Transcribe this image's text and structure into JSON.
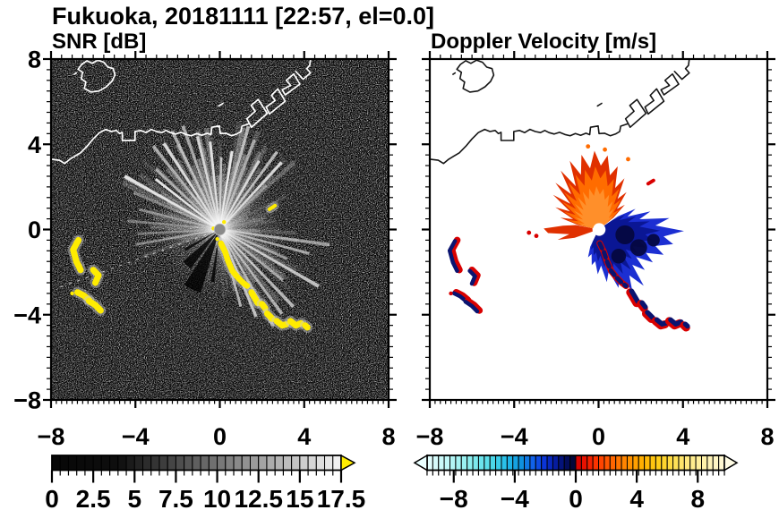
{
  "figure": {
    "title": "Fukuoka, 20181111 [22:57, el=0.0]"
  },
  "chart_data": [
    {
      "type": "heatmap",
      "title": "SNR [dB]",
      "xlabel": "",
      "ylabel": "",
      "xlim": [
        -8,
        8
      ],
      "ylim": [
        -8,
        8
      ],
      "xticks": [
        -8,
        -4,
        0,
        4,
        8
      ],
      "xtick_labels": [
        "−8",
        "−4",
        "0",
        "4",
        "8"
      ],
      "yticks": [
        8,
        4,
        0,
        -4,
        -8
      ],
      "ytick_labels": [
        "8",
        "4",
        "0",
        "−4",
        "−8"
      ],
      "minor_step_x": 0.25,
      "minor_step_y": 0.5,
      "grid": false,
      "background_color": "#000000",
      "coast_color": "#ffffff",
      "echo_color": "#ffec00",
      "echo_halo_color": "#cccccc",
      "radar_center": [
        0,
        0
      ],
      "colorbar": {
        "kind": "grayscale",
        "min": 0,
        "max": 17.5,
        "cell_step": 0.5,
        "ticks": [
          0,
          2.5,
          5,
          7.5,
          10,
          12.5,
          15,
          17.5
        ],
        "tick_labels": [
          "0",
          "2.5",
          "5",
          "7.5",
          "10",
          "12.5",
          "15",
          "17.5"
        ],
        "over_arrow_color": "#ffec00"
      }
    },
    {
      "type": "heatmap",
      "title": "Doppler Velocity [m/s]",
      "xlabel": "",
      "ylabel": "",
      "xlim": [
        -8,
        8
      ],
      "ylim": [
        -8,
        8
      ],
      "xticks": [
        -8,
        -4,
        0,
        4,
        8
      ],
      "xtick_labels": [
        "−8",
        "−4",
        "0",
        "4",
        "8"
      ],
      "yticks": [
        8,
        4,
        0,
        -4,
        -8
      ],
      "ytick_labels": [
        "8",
        "4",
        "0",
        "−4",
        "−8"
      ],
      "minor_step_x": 0.25,
      "minor_step_y": 0.5,
      "grid": false,
      "background_color": "#ffffff",
      "coast_color": "#151515",
      "pos_color_main": "#ff6c00",
      "pos_color_edge": "#e03000",
      "pos_color_core": "#ff8f2a",
      "neg_color_main": "#1c2fd2",
      "neg_color_dark": "#0a1694",
      "neg_color_darkest": "#04073c",
      "red_color": "#d90000",
      "navy_color": "#0a1470",
      "colorbar": {
        "kind": "doppler",
        "min": -9.75,
        "max": 9.75,
        "cell_step": 0.375,
        "ticks": [
          -8,
          -4,
          0,
          4,
          8
        ],
        "tick_labels": [
          "−8",
          "−4",
          "0",
          "4",
          "8"
        ],
        "under_arrow_color": "#e9ffff",
        "over_arrow_color": "#fffce4",
        "neg_stops": [
          [
            -9.75,
            "#e6ffff"
          ],
          [
            -8.5,
            "#c2f7f7"
          ],
          [
            -7.0,
            "#8fefef"
          ],
          [
            -5.5,
            "#4fd9e9"
          ],
          [
            -4.5,
            "#22bce9"
          ],
          [
            -3.6,
            "#0f93dd"
          ],
          [
            -2.8,
            "#1161ea"
          ],
          [
            -2.1,
            "#0b36da"
          ],
          [
            -1.5,
            "#0721b0"
          ],
          [
            -0.9,
            "#041277"
          ],
          [
            -0.3,
            "#020843"
          ],
          [
            -0.05,
            "#01052e"
          ]
        ],
        "pos_stops": [
          [
            0.05,
            "#cf0000"
          ],
          [
            0.7,
            "#ee1500"
          ],
          [
            1.5,
            "#ff3c00"
          ],
          [
            2.4,
            "#ff6400"
          ],
          [
            3.4,
            "#ff8c00"
          ],
          [
            4.4,
            "#ffb100"
          ],
          [
            5.4,
            "#ffcd18"
          ],
          [
            6.4,
            "#ffdf4d"
          ],
          [
            7.4,
            "#ffea83"
          ],
          [
            8.6,
            "#fff3b0"
          ],
          [
            9.75,
            "#fff9d8"
          ]
        ]
      }
    }
  ],
  "coastline": {
    "mainland": [
      [
        -8,
        3.3
      ],
      [
        -7.6,
        3.25
      ],
      [
        -7.35,
        3.1
      ],
      [
        -7.1,
        3.3
      ],
      [
        -6.85,
        3.45
      ],
      [
        -6.6,
        3.6
      ],
      [
        -6.3,
        3.9
      ],
      [
        -6.0,
        4.25
      ],
      [
        -5.7,
        4.55
      ],
      [
        -5.4,
        4.7
      ],
      [
        -5.15,
        4.6
      ],
      [
        -4.9,
        4.65
      ],
      [
        -4.75,
        4.5
      ],
      [
        -4.62,
        4.56
      ],
      [
        -4.62,
        4.18
      ],
      [
        -4.02,
        4.18
      ],
      [
        -4.02,
        4.6
      ],
      [
        -3.75,
        4.65
      ],
      [
        -3.5,
        4.55
      ],
      [
        -3.25,
        4.7
      ],
      [
        -3.0,
        4.6
      ],
      [
        -2.75,
        4.55
      ],
      [
        -2.55,
        4.65
      ],
      [
        -2.35,
        4.55
      ],
      [
        -2.1,
        4.48
      ],
      [
        -1.85,
        4.56
      ],
      [
        -1.6,
        4.46
      ],
      [
        -1.35,
        4.4
      ],
      [
        -1.1,
        4.5
      ],
      [
        -0.85,
        4.42
      ],
      [
        -0.6,
        4.52
      ],
      [
        -0.42,
        4.45
      ],
      [
        -0.38,
        4.8
      ],
      [
        -0.02,
        4.86
      ],
      [
        0.02,
        4.5
      ],
      [
        0.28,
        4.52
      ],
      [
        0.55,
        4.4
      ],
      [
        0.8,
        4.48
      ],
      [
        1.0,
        4.6
      ],
      [
        1.05,
        4.85
      ],
      [
        1.35,
        4.95
      ]
    ],
    "island": [
      [
        -6.55,
        7.75
      ],
      [
        -6.3,
        7.92
      ],
      [
        -6.05,
        7.8
      ],
      [
        -5.78,
        7.95
      ],
      [
        -5.5,
        7.85
      ],
      [
        -5.3,
        7.62
      ],
      [
        -5.05,
        7.55
      ],
      [
        -4.97,
        7.25
      ],
      [
        -5.12,
        6.95
      ],
      [
        -5.38,
        6.7
      ],
      [
        -5.72,
        6.5
      ],
      [
        -6.1,
        6.45
      ],
      [
        -6.42,
        6.62
      ],
      [
        -6.35,
        6.92
      ],
      [
        -6.57,
        7.08
      ],
      [
        -6.5,
        7.38
      ],
      [
        -6.72,
        7.52
      ]
    ],
    "port_islets": [
      [
        [
          1.5,
          4.8
        ],
        [
          2.25,
          5.45
        ],
        [
          1.82,
          6.1
        ],
        [
          1.48,
          5.82
        ],
        [
          1.68,
          5.55
        ],
        [
          1.28,
          5.2
        ]
      ],
      [
        [
          2.35,
          5.42
        ],
        [
          3.1,
          6.02
        ],
        [
          2.75,
          6.6
        ],
        [
          2.45,
          6.3
        ],
        [
          2.62,
          6.05
        ],
        [
          2.2,
          5.75
        ]
      ],
      [
        [
          3.1,
          6.32
        ],
        [
          3.8,
          6.82
        ],
        [
          3.5,
          7.3
        ],
        [
          3.15,
          7.0
        ],
        [
          3.36,
          6.76
        ],
        [
          2.96,
          6.56
        ]
      ]
    ],
    "port_top_line": [
      [
        3.6,
        7.42
      ],
      [
        3.95,
        7.05
      ],
      [
        4.3,
        7.35
      ],
      [
        4.12,
        7.55
      ],
      [
        4.26,
        7.7
      ],
      [
        4.3,
        8.0
      ]
    ],
    "tiny_marks": [
      [
        [
          -0.05,
          5.8
        ],
        [
          0.15,
          5.92
        ]
      ],
      [
        [
          -6.9,
          7.28
        ],
        [
          -6.8,
          7.35
        ]
      ]
    ]
  },
  "echoes": {
    "left_cluster": [
      [
        [
          -6.7,
          -0.5
        ],
        [
          -6.95,
          -0.95
        ],
        [
          -6.8,
          -1.5
        ],
        [
          -6.6,
          -1.9
        ]
      ],
      [
        [
          -6.0,
          -1.9
        ],
        [
          -5.75,
          -2.15
        ],
        [
          -5.9,
          -2.5
        ]
      ],
      [
        [
          -6.75,
          -2.95
        ],
        [
          -6.45,
          -3.1
        ],
        [
          -6.2,
          -3.3
        ]
      ],
      [
        [
          -6.2,
          -3.35
        ],
        [
          -5.9,
          -3.55
        ],
        [
          -5.65,
          -3.8
        ]
      ]
    ],
    "cluster_dot": [
      -7.0,
      -3.0
    ],
    "chain_inner": [
      [
        0.05,
        -0.65
      ],
      [
        0.25,
        -1.05
      ],
      [
        0.4,
        -1.5
      ],
      [
        0.6,
        -1.95
      ],
      [
        0.85,
        -2.25
      ],
      [
        1.1,
        -2.5
      ],
      [
        1.3,
        -2.65
      ]
    ],
    "chain": [
      [
        [
          1.5,
          -2.95
        ],
        [
          1.65,
          -3.2
        ],
        [
          1.8,
          -3.45
        ]
      ],
      [
        [
          2.0,
          -3.5
        ],
        [
          2.15,
          -3.7
        ]
      ],
      [
        [
          2.25,
          -3.95
        ],
        [
          2.5,
          -4.2
        ]
      ],
      [
        [
          2.7,
          -4.3
        ],
        [
          2.95,
          -4.5
        ],
        [
          3.15,
          -4.45
        ]
      ],
      [
        [
          3.35,
          -4.3
        ],
        [
          3.6,
          -4.5
        ],
        [
          3.85,
          -4.4
        ]
      ],
      [
        [
          4.05,
          -4.5
        ],
        [
          4.15,
          -4.6
        ]
      ]
    ],
    "snr_dash": [
      [
        2.35,
        0.95
      ],
      [
        2.62,
        1.12
      ]
    ],
    "snr_dots": [
      [
        -0.3,
        0.05
      ],
      [
        -0.12,
        -0.45
      ],
      [
        0.2,
        0.35
      ]
    ],
    "vel_dash": [
      [
        2.35,
        2.15
      ],
      [
        2.6,
        2.3
      ]
    ],
    "vel_red_dots": [
      [
        -2.95,
        -0.3
      ],
      [
        -3.3,
        -0.15
      ]
    ],
    "vel_orange_dots": [
      [
        0.3,
        3.75
      ],
      [
        -0.5,
        3.9
      ],
      [
        1.4,
        3.3
      ]
    ]
  },
  "snr_field": {
    "spokes": [
      299,
      306,
      313,
      320,
      326,
      333,
      339,
      346,
      353,
      0,
      7,
      14,
      21,
      28,
      35,
      42,
      96,
      104,
      112,
      119,
      127,
      135,
      142,
      150,
      157,
      164,
      259,
      267,
      275,
      283,
      291
    ],
    "dark_wedges": [
      [
        197,
        214,
        3.1
      ],
      [
        217,
        231,
        2.3
      ],
      [
        186,
        191,
        2.5
      ],
      [
        238,
        243,
        1.9
      ]
    ],
    "dotted_ray_end": [
      -7.7,
      -2.75
    ]
  },
  "vel_field": {
    "orange_fan": [
      [
        282,
        1.0
      ],
      [
        287,
        1.9
      ],
      [
        292,
        1.3
      ],
      [
        297,
        2.3
      ],
      [
        302,
        1.6
      ],
      [
        307,
        2.7
      ],
      [
        312,
        1.8
      ],
      [
        317,
        3.0
      ],
      [
        322,
        2.1
      ],
      [
        327,
        3.3
      ],
      [
        332,
        2.3
      ],
      [
        337,
        3.5
      ],
      [
        342,
        2.7
      ],
      [
        347,
        3.6
      ],
      [
        352,
        2.9
      ],
      [
        357,
        3.7
      ],
      [
        2,
        3.0
      ],
      [
        7,
        3.5
      ],
      [
        12,
        2.6
      ],
      [
        17,
        3.1
      ],
      [
        22,
        2.1
      ],
      [
        27,
        2.7
      ],
      [
        32,
        1.7
      ],
      [
        37,
        2.2
      ],
      [
        42,
        1.3
      ],
      [
        47,
        1.7
      ],
      [
        52,
        0.9
      ]
    ],
    "west_fan": [
      [
        251,
        1.2
      ],
      [
        256,
        2.0
      ],
      [
        261,
        1.4
      ],
      [
        266,
        2.4
      ],
      [
        271,
        2.6
      ],
      [
        276,
        1.7
      ],
      [
        281,
        1.1
      ]
    ],
    "blue_fan": [
      [
        56,
        1.1
      ],
      [
        61,
        2.0
      ],
      [
        66,
        1.5
      ],
      [
        71,
        2.6
      ],
      [
        76,
        2.0
      ],
      [
        81,
        3.4
      ],
      [
        86,
        2.7
      ],
      [
        91,
        4.05
      ],
      [
        96,
        3.1
      ],
      [
        101,
        3.6
      ],
      [
        106,
        2.8
      ],
      [
        111,
        3.3
      ],
      [
        116,
        2.5
      ],
      [
        121,
        3.0
      ],
      [
        126,
        2.2
      ],
      [
        131,
        2.9
      ],
      [
        136,
        2.3
      ],
      [
        141,
        3.4
      ],
      [
        146,
        2.6
      ],
      [
        151,
        3.3
      ],
      [
        156,
        2.4
      ],
      [
        161,
        2.9
      ],
      [
        166,
        2.0
      ],
      [
        171,
        2.5
      ],
      [
        176,
        1.7
      ],
      [
        181,
        2.1
      ],
      [
        186,
        1.5
      ],
      [
        191,
        1.7
      ],
      [
        196,
        1.2
      ],
      [
        201,
        1.4
      ],
      [
        206,
        0.9
      ]
    ],
    "dark_patches": [
      [
        1.25,
        -0.25,
        0.45
      ],
      [
        0.95,
        -1.25,
        0.35
      ],
      [
        1.9,
        -0.85,
        0.4
      ],
      [
        2.6,
        -0.5,
        0.3
      ]
    ]
  }
}
